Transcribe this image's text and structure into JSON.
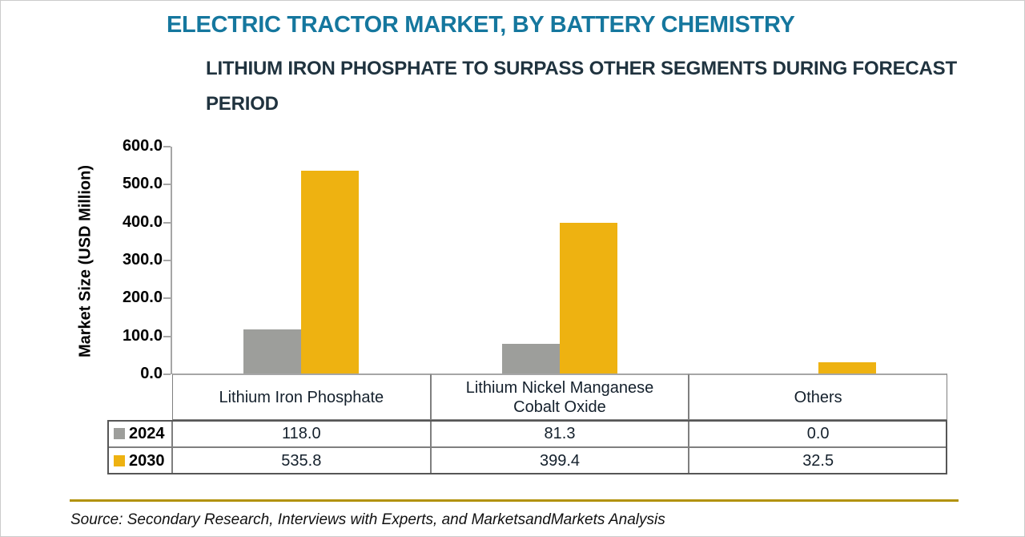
{
  "header": {
    "title": "ELECTRIC TRACTOR MARKET, BY BATTERY CHEMISTRY",
    "subtitle": "LITHIUM IRON PHOSPHATE TO SURPASS OTHER SEGMENTS DURING FORECAST PERIOD"
  },
  "chart_data": {
    "type": "bar",
    "title": "ELECTRIC TRACTOR MARKET, BY BATTERY CHEMISTRY",
    "categories": [
      "Lithium Iron Phosphate",
      "Lithium Nickel Manganese\nCobalt Oxide",
      "Others"
    ],
    "series": [
      {
        "name": "2024",
        "color": "#9D9E9B",
        "values": [
          118.0,
          81.3,
          0.0
        ]
      },
      {
        "name": "2030",
        "color": "#EEB211",
        "values": [
          535.8,
          399.4,
          32.5
        ]
      }
    ],
    "xlabel": "",
    "ylabel": "Market Size (USD Million)",
    "ylim": [
      0,
      600
    ],
    "ytick_step": 100,
    "ytick_decimals": 1,
    "grid": false,
    "legend_position": "table-left-column"
  },
  "colors": {
    "title": "#15779E",
    "subtitle": "#20333F",
    "series_2024": "#9D9E9B",
    "series_2030": "#EEB211",
    "axis": "#a6a6a6",
    "table_border": "#7f7f7f",
    "divider": "#B2920B"
  },
  "footer": {
    "source": "Source: Secondary Research, Interviews with Experts, and MarketsandMarkets Analysis"
  }
}
